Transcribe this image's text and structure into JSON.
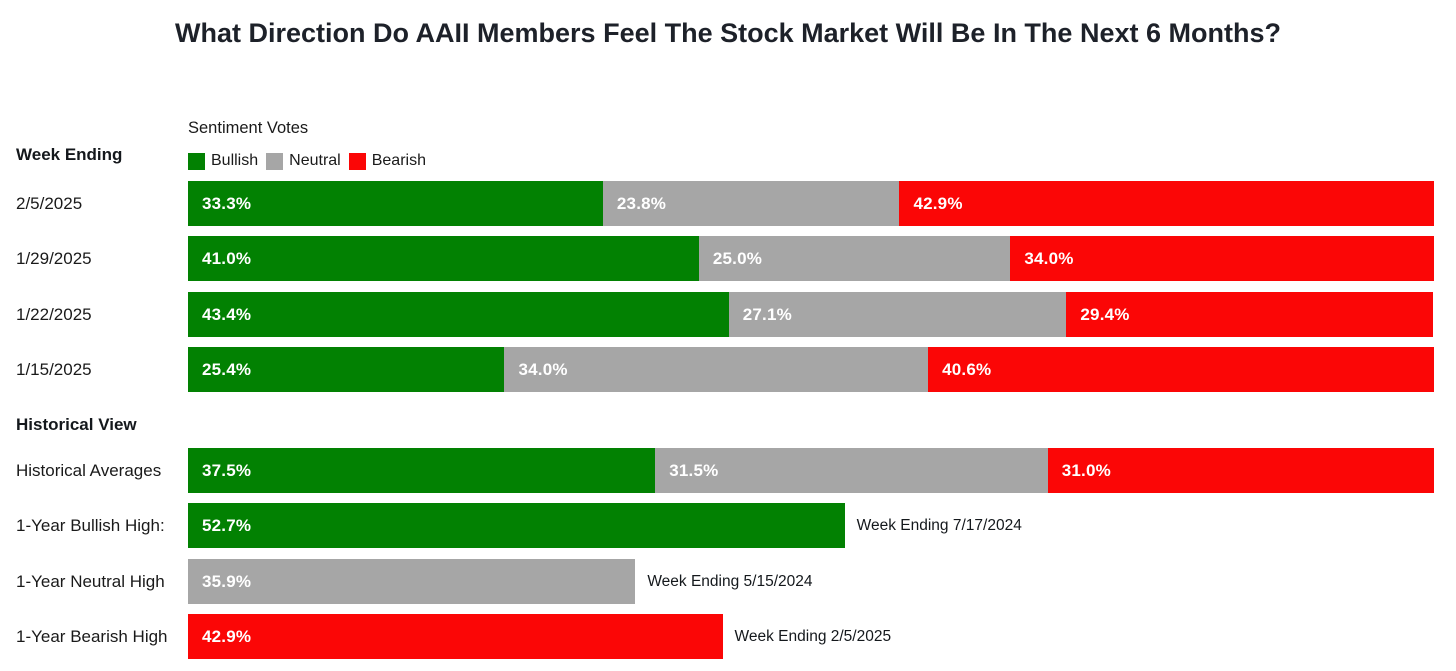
{
  "title": "What Direction Do AAII Members Feel The Stock Market Will Be In The Next 6 Months?",
  "left_column": {
    "week_ending_header": "Week Ending",
    "historical_header": "Historical View"
  },
  "legend": {
    "title": "Sentiment Votes",
    "items": [
      {
        "label": "Bullish",
        "color": "#028102"
      },
      {
        "label": "Neutral",
        "color": "#a6a6a6"
      },
      {
        "label": "Bearish",
        "color": "#fb0606"
      }
    ]
  },
  "chart_data": {
    "type": "bar",
    "stacked": true,
    "orientation": "horizontal",
    "unit": "%",
    "xlim": [
      0,
      100
    ],
    "grid": false,
    "legend_position": "top-left",
    "weekly": {
      "categories": [
        "2/5/2025",
        "1/29/2025",
        "1/22/2025",
        "1/15/2025"
      ],
      "series": [
        {
          "name": "Bullish",
          "color": "#028102",
          "values": [
            33.3,
            41.0,
            43.4,
            25.4
          ]
        },
        {
          "name": "Neutral",
          "color": "#a6a6a6",
          "values": [
            23.8,
            25.0,
            27.1,
            34.0
          ]
        },
        {
          "name": "Bearish",
          "color": "#fb0606",
          "values": [
            42.9,
            34.0,
            29.4,
            40.6
          ]
        }
      ]
    },
    "historical": {
      "averages": {
        "label": "Historical Averages",
        "values": {
          "Bullish": 37.5,
          "Neutral": 31.5,
          "Bearish": 31.0
        }
      },
      "one_year_highs": [
        {
          "label": "1-Year Bullish High:",
          "series": "Bullish",
          "value": 52.7,
          "annotation": "Week Ending 7/17/2024"
        },
        {
          "label": "1-Year Neutral High",
          "series": "Neutral",
          "value": 35.9,
          "annotation": "Week Ending 5/15/2024"
        },
        {
          "label": "1-Year Bearish High",
          "series": "Bearish",
          "value": 42.9,
          "annotation": "Week Ending 2/5/2025"
        }
      ]
    }
  }
}
